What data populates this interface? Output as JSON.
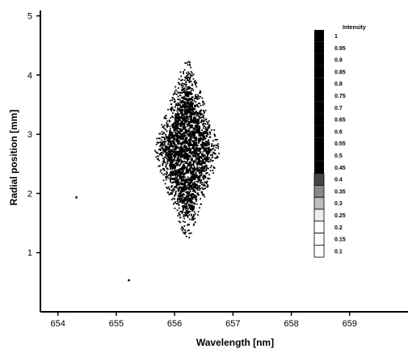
{
  "chart_data": {
    "type": "scatter",
    "xlabel": "Wavelength [nm]",
    "ylabel": "Radial position [mm]",
    "xlim": [
      653.7,
      660.0
    ],
    "ylim": [
      0,
      5.2
    ],
    "xticks": [
      654,
      655,
      656,
      657,
      658,
      659
    ],
    "yticks": [
      1,
      2,
      3,
      4,
      5
    ],
    "grid": false,
    "points_color": "#000000",
    "region": {
      "shape": "diamond",
      "center_x": 656.2,
      "center_y": 2.75,
      "x_min": 655.65,
      "x_max": 656.75,
      "y_min": 1.25,
      "y_max": 4.25
    },
    "outliers": [
      {
        "x": 654.3,
        "y": 1.95
      },
      {
        "x": 655.2,
        "y": 0.55
      }
    ],
    "colorbar": {
      "title": "Intensity",
      "placement": "right",
      "levels": [
        "1",
        "0.95",
        "0.9",
        "0.85",
        "0.8",
        "0.75",
        "0.7",
        "0.65",
        "0.6",
        "0.55",
        "0.5",
        "0.45",
        "0.4",
        "0.35",
        "0.3",
        "0.25",
        "0.2",
        "0.15",
        "0.1"
      ]
    }
  }
}
